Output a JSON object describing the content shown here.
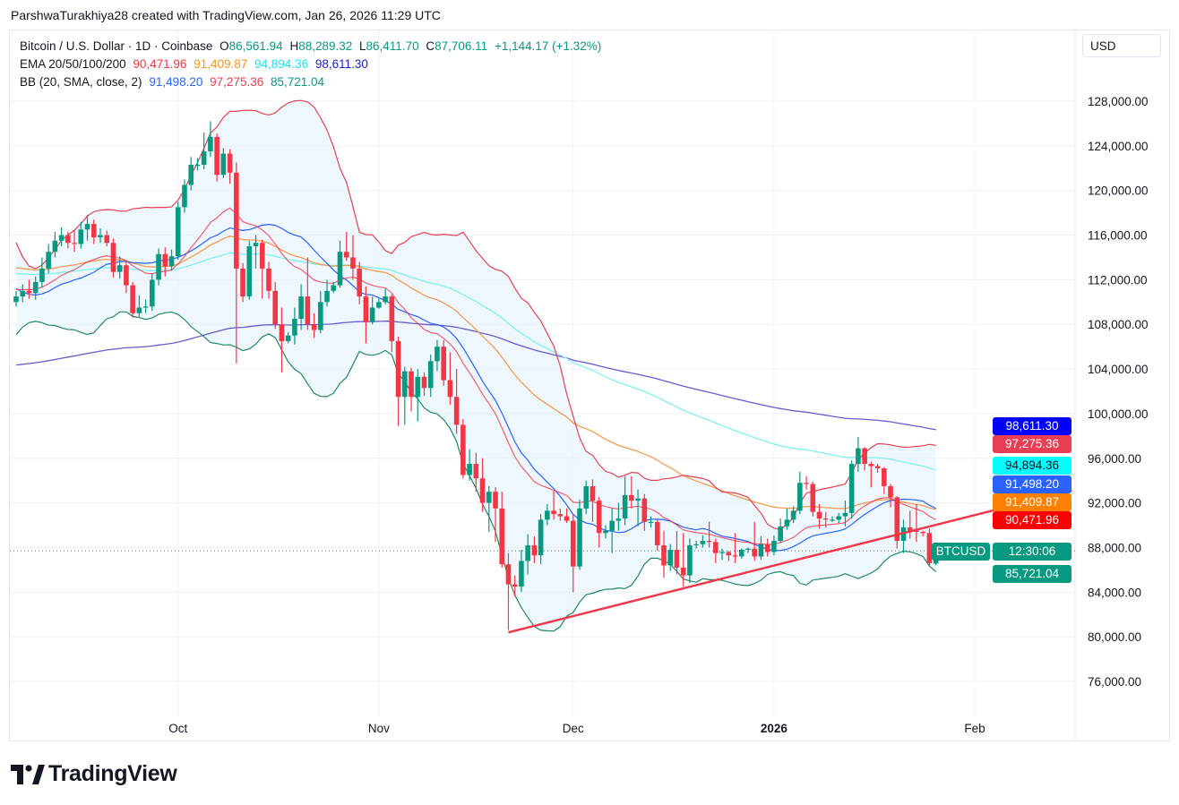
{
  "credit": "ParshwaTurakhiya28 created with TradingView.com, Jan 26, 2026 11:29 UTC",
  "legend": {
    "symbol": "Bitcoin / U.S. Dollar · 1D · Coinbase",
    "o_label": "O",
    "o": "86,561.94",
    "h_label": "H",
    "h": "88,289.32",
    "l_label": "L",
    "l": "86,411.70",
    "c_label": "C",
    "c": "87,706.11",
    "change": "+1,144.17 (+1.32%)",
    "ema_label": "EMA 20/50/100/200",
    "ema20": "90,471.96",
    "ema50": "91,409.87",
    "ema100": "94,894.36",
    "ema200": "98,611.30",
    "bb_label": "BB (20, SMA, close, 2)",
    "bb_basis": "91,498.20",
    "bb_upper": "97,275.36",
    "bb_lower": "85,721.04"
  },
  "currency": "USD",
  "price_tags": [
    {
      "text": "98,611.30",
      "bg": "#0000ff",
      "fg": "#ffffff"
    },
    {
      "text": "97,275.36",
      "bg": "#ea3c53",
      "fg": "#ffffff"
    },
    {
      "text": "94,894.36",
      "bg": "#00ffff",
      "fg": "#131722"
    },
    {
      "text": "91,498.20",
      "bg": "#2962ff",
      "fg": "#ffffff"
    },
    {
      "text": "91,409.87",
      "bg": "#ff8000",
      "fg": "#ffffff"
    },
    {
      "text": "90,471.96",
      "bg": "#ff0000",
      "fg": "#ffffff"
    },
    {
      "text": "12:30:06",
      "bg": "#089981",
      "fg": "#ffffff"
    },
    {
      "text": "85,721.04",
      "bg": "#089981",
      "fg": "#ffffff"
    }
  ],
  "symbol_tag": "BTCUSD",
  "brand": "TradingView",
  "colors": {
    "up": "#089981",
    "down": "#f23645",
    "ema20": "#f23645",
    "ema50": "#f59b4c",
    "ema100": "#7ff0f0",
    "ema200": "#6a5acd",
    "bb_basis": "#2962ff",
    "bb_upper": "#e5404f",
    "bb_lower": "#1e8a60",
    "bb_fill": "#e3f2fd",
    "trendline": "#f23645"
  },
  "chart_data": {
    "type": "candlestick",
    "interval": "1D",
    "y_ticks": [
      128000,
      124000,
      120000,
      116000,
      112000,
      108000,
      104000,
      100000,
      96000,
      92000,
      88000,
      84000,
      80000,
      76000
    ],
    "y_tick_labels": [
      "128,000.00",
      "124,000.00",
      "120,000.00",
      "116,000.00",
      "112,000.00",
      "108,000.00",
      "104,000.00",
      "100,000.00",
      "96,000.00",
      "92,000.00",
      "88,000.00",
      "84,000.00",
      "80,000.00",
      "76,000.00"
    ],
    "ylim": [
      73000,
      131000
    ],
    "x_ticks": [
      {
        "label": "Oct",
        "date": "2025-10-01"
      },
      {
        "label": "Nov",
        "date": "2025-11-01"
      },
      {
        "label": "Dec",
        "date": "2025-12-01"
      },
      {
        "label": "2026",
        "date": "2026-01-01",
        "bold": true
      },
      {
        "label": "Feb",
        "date": "2026-02-01"
      }
    ],
    "grid": true,
    "indicators": [
      "EMA 20",
      "EMA 50",
      "EMA 100",
      "EMA 200",
      "BB (20, SMA, close, 2)"
    ],
    "last_price": 87706.11,
    "trendline": [
      {
        "date": "2025-11-21",
        "price": 80400
      },
      {
        "date": "2026-02-16",
        "price": 93100
      }
    ],
    "candles": [
      [
        "2025-09-06",
        110000,
        111000,
        109600,
        110500
      ],
      [
        "2025-09-07",
        110500,
        111600,
        110000,
        111000
      ],
      [
        "2025-09-08",
        111000,
        112000,
        110300,
        110800
      ],
      [
        "2025-09-09",
        110800,
        112300,
        110200,
        111800
      ],
      [
        "2025-09-10",
        111800,
        114000,
        111300,
        113000
      ],
      [
        "2025-09-11",
        113000,
        115200,
        112600,
        114500
      ],
      [
        "2025-09-12",
        114500,
        116300,
        114000,
        115500
      ],
      [
        "2025-09-13",
        115500,
        116700,
        115000,
        116000
      ],
      [
        "2025-09-14",
        116000,
        116300,
        114800,
        115300
      ],
      [
        "2025-09-15",
        115300,
        116400,
        114500,
        115200
      ],
      [
        "2025-09-16",
        115200,
        117200,
        114800,
        116500
      ],
      [
        "2025-09-17",
        116500,
        117800,
        115500,
        117000
      ],
      [
        "2025-09-18",
        117000,
        117400,
        115200,
        115800
      ],
      [
        "2025-09-19",
        115800,
        116600,
        115300,
        116000
      ],
      [
        "2025-09-20",
        116000,
        116400,
        115000,
        115300
      ],
      [
        "2025-09-21",
        115300,
        115700,
        112200,
        112700
      ],
      [
        "2025-09-22",
        112700,
        114100,
        112100,
        113300
      ],
      [
        "2025-09-23",
        113300,
        113600,
        110800,
        111500
      ],
      [
        "2025-09-24",
        111500,
        111800,
        108600,
        109000
      ],
      [
        "2025-09-25",
        109000,
        110600,
        108700,
        109500
      ],
      [
        "2025-09-26",
        109500,
        110200,
        109000,
        109600
      ],
      [
        "2025-09-27",
        109600,
        112600,
        109200,
        112000
      ],
      [
        "2025-09-28",
        112000,
        114800,
        111500,
        114300
      ],
      [
        "2025-09-29",
        114300,
        114900,
        112300,
        113200
      ],
      [
        "2025-09-30",
        113200,
        114700,
        112800,
        114100
      ],
      [
        "2025-10-01",
        114100,
        119000,
        113800,
        118500
      ],
      [
        "2025-10-02",
        118500,
        121000,
        118000,
        120500
      ],
      [
        "2025-10-03",
        120500,
        123000,
        120000,
        122300
      ],
      [
        "2025-10-04",
        122300,
        122900,
        121800,
        122300
      ],
      [
        "2025-10-05",
        122300,
        125200,
        121900,
        123500
      ],
      [
        "2025-10-06",
        123500,
        126200,
        123000,
        124800
      ],
      [
        "2025-10-07",
        124800,
        125100,
        120800,
        121400
      ],
      [
        "2025-10-08",
        121400,
        123800,
        121100,
        123300
      ],
      [
        "2025-10-09",
        123300,
        123700,
        120600,
        121600
      ],
      [
        "2025-10-10",
        121600,
        122500,
        104500,
        113000
      ],
      [
        "2025-10-11",
        113000,
        113500,
        110000,
        110500
      ],
      [
        "2025-10-12",
        110500,
        115500,
        110200,
        115000
      ],
      [
        "2025-10-13",
        115000,
        116000,
        113000,
        115300
      ],
      [
        "2025-10-14",
        115300,
        115600,
        110300,
        113000
      ],
      [
        "2025-10-15",
        113000,
        113600,
        110300,
        111000
      ],
      [
        "2025-10-16",
        111000,
        111800,
        107600,
        108000
      ],
      [
        "2025-10-17",
        108000,
        109500,
        103700,
        106500
      ],
      [
        "2025-10-18",
        106500,
        107300,
        106300,
        107000
      ],
      [
        "2025-10-19",
        107000,
        109500,
        106200,
        108500
      ],
      [
        "2025-10-20",
        108500,
        111600,
        107500,
        110500
      ],
      [
        "2025-10-21",
        110500,
        114000,
        107500,
        108000
      ],
      [
        "2025-10-22",
        108000,
        109000,
        106800,
        107500
      ],
      [
        "2025-10-23",
        107500,
        111000,
        107200,
        110000
      ],
      [
        "2025-10-24",
        110000,
        112000,
        109600,
        111000
      ],
      [
        "2025-10-25",
        111000,
        111800,
        110800,
        111500
      ],
      [
        "2025-10-26",
        111500,
        115500,
        111300,
        114500
      ],
      [
        "2025-10-27",
        114500,
        116300,
        113700,
        114000
      ],
      [
        "2025-10-28",
        114000,
        116000,
        112000,
        113000
      ],
      [
        "2025-10-29",
        113000,
        113600,
        109800,
        110500
      ],
      [
        "2025-10-30",
        110500,
        111400,
        106300,
        108200
      ],
      [
        "2025-10-31",
        108200,
        110500,
        108000,
        109500
      ],
      [
        "2025-11-01",
        109500,
        110300,
        109400,
        110000
      ],
      [
        "2025-11-02",
        110000,
        111200,
        109800,
        110500
      ],
      [
        "2025-11-03",
        110500,
        110700,
        105500,
        106500
      ],
      [
        "2025-11-04",
        106500,
        106900,
        98900,
        101500
      ],
      [
        "2025-11-05",
        101500,
        104200,
        99000,
        103800
      ],
      [
        "2025-11-06",
        103800,
        104100,
        100200,
        101500
      ],
      [
        "2025-11-07",
        101500,
        104000,
        99300,
        103300
      ],
      [
        "2025-11-08",
        103300,
        103700,
        101600,
        102300
      ],
      [
        "2025-11-09",
        102300,
        105300,
        101500,
        104700
      ],
      [
        "2025-11-10",
        104700,
        106600,
        103800,
        106000
      ],
      [
        "2025-11-11",
        106000,
        106600,
        102500,
        103000
      ],
      [
        "2025-11-12",
        103000,
        105500,
        100800,
        101500
      ],
      [
        "2025-11-13",
        101500,
        104000,
        98200,
        99000
      ],
      [
        "2025-11-14",
        99000,
        99500,
        94200,
        94500
      ],
      [
        "2025-11-15",
        94500,
        96800,
        94000,
        95500
      ],
      [
        "2025-11-16",
        95500,
        96500,
        93000,
        94200
      ],
      [
        "2025-11-17",
        94200,
        96000,
        91200,
        92000
      ],
      [
        "2025-11-18",
        92000,
        93500,
        89400,
        93000
      ],
      [
        "2025-11-19",
        93000,
        93400,
        88500,
        91500
      ],
      [
        "2025-11-20",
        91500,
        93000,
        86200,
        86500
      ],
      [
        "2025-11-21",
        86500,
        87500,
        80600,
        84700
      ],
      [
        "2025-11-22",
        84700,
        85500,
        83600,
        84500
      ],
      [
        "2025-11-23",
        84500,
        87800,
        84000,
        86800
      ],
      [
        "2025-11-24",
        86800,
        89200,
        85600,
        88200
      ],
      [
        "2025-11-25",
        88200,
        89000,
        86600,
        87300
      ],
      [
        "2025-11-26",
        87300,
        91000,
        86500,
        90500
      ],
      [
        "2025-11-27",
        90500,
        91900,
        90000,
        91300
      ],
      [
        "2025-11-28",
        91300,
        93100,
        90500,
        91000
      ],
      [
        "2025-11-29",
        91000,
        91500,
        90400,
        90800
      ],
      [
        "2025-11-30",
        90800,
        91500,
        90200,
        90400
      ],
      [
        "2025-12-01",
        90400,
        91000,
        84000,
        86300
      ],
      [
        "2025-12-02",
        86300,
        92300,
        86000,
        91500
      ],
      [
        "2025-12-03",
        91500,
        94000,
        91000,
        93500
      ],
      [
        "2025-12-04",
        93500,
        94100,
        90300,
        92200
      ],
      [
        "2025-12-05",
        92200,
        92500,
        88000,
        89300
      ],
      [
        "2025-12-06",
        89300,
        90000,
        88800,
        89500
      ],
      [
        "2025-12-07",
        89500,
        91500,
        87500,
        90400
      ],
      [
        "2025-12-08",
        90400,
        92000,
        89500,
        90600
      ],
      [
        "2025-12-09",
        90600,
        94400,
        90000,
        92700
      ],
      [
        "2025-12-10",
        92700,
        94400,
        91500,
        92200
      ],
      [
        "2025-12-11",
        92200,
        93200,
        89900,
        92400
      ],
      [
        "2025-12-12",
        92400,
        92800,
        89500,
        90300
      ],
      [
        "2025-12-13",
        90300,
        90800,
        89800,
        90300
      ],
      [
        "2025-12-14",
        90300,
        90600,
        87700,
        88200
      ],
      [
        "2025-12-15",
        88200,
        89500,
        85300,
        86400
      ],
      [
        "2025-12-16",
        86400,
        88300,
        85900,
        87800
      ],
      [
        "2025-12-17",
        87800,
        89500,
        85600,
        86200
      ],
      [
        "2025-12-18",
        86200,
        89300,
        84500,
        85500
      ],
      [
        "2025-12-19",
        85500,
        88800,
        84800,
        88200
      ],
      [
        "2025-12-20",
        88200,
        88600,
        87900,
        88300
      ],
      [
        "2025-12-21",
        88300,
        89100,
        88000,
        88600
      ],
      [
        "2025-12-22",
        88600,
        90300,
        88000,
        88500
      ],
      [
        "2025-12-23",
        88500,
        88800,
        86600,
        87500
      ],
      [
        "2025-12-24",
        87500,
        87900,
        86900,
        87600
      ],
      [
        "2025-12-25",
        87600,
        87700,
        86800,
        87300
      ],
      [
        "2025-12-26",
        87300,
        89300,
        86600,
        87200
      ],
      [
        "2025-12-27",
        87200,
        87900,
        87000,
        87800
      ],
      [
        "2025-12-28",
        87800,
        88000,
        87500,
        87900
      ],
      [
        "2025-12-29",
        87900,
        90300,
        86800,
        87200
      ],
      [
        "2025-12-30",
        87200,
        89000,
        86900,
        88300
      ],
      [
        "2025-12-31",
        88300,
        88800,
        87200,
        87600
      ],
      [
        "2026-01-01",
        87600,
        89100,
        87300,
        88600
      ],
      [
        "2026-01-02",
        88600,
        90600,
        88400,
        89900
      ],
      [
        "2026-01-03",
        89900,
        91500,
        89600,
        90500
      ],
      [
        "2026-01-04",
        90500,
        91700,
        90200,
        91300
      ],
      [
        "2026-01-05",
        91300,
        94800,
        91000,
        93800
      ],
      [
        "2026-01-06",
        93800,
        94400,
        93200,
        93700
      ],
      [
        "2026-01-07",
        93700,
        93900,
        90800,
        91200
      ],
      [
        "2026-01-08",
        91200,
        91900,
        89700,
        90600
      ],
      [
        "2026-01-09",
        90600,
        91200,
        89800,
        90500
      ],
      [
        "2026-01-10",
        90500,
        90800,
        90300,
        90500
      ],
      [
        "2026-01-11",
        90500,
        91100,
        90200,
        90800
      ],
      [
        "2026-01-12",
        90800,
        92200,
        89900,
        91100
      ],
      [
        "2026-01-13",
        91100,
        95800,
        90600,
        95500
      ],
      [
        "2026-01-14",
        95500,
        97900,
        94800,
        96900
      ],
      [
        "2026-01-15",
        96900,
        97000,
        94900,
        95500
      ],
      [
        "2026-01-16",
        95500,
        95700,
        93400,
        95300
      ],
      [
        "2026-01-17",
        95300,
        95500,
        94700,
        95100
      ],
      [
        "2026-01-18",
        95100,
        95200,
        92800,
        93500
      ],
      [
        "2026-01-19",
        93500,
        93700,
        91600,
        92500
      ],
      [
        "2026-01-20",
        92500,
        92600,
        87900,
        88600
      ],
      [
        "2026-01-21",
        88600,
        90500,
        87500,
        89800
      ],
      [
        "2026-01-22",
        89800,
        91300,
        88800,
        89500
      ],
      [
        "2026-01-23",
        89500,
        91900,
        88500,
        89400
      ],
      [
        "2026-01-24",
        89400,
        89500,
        89000,
        89300
      ],
      [
        "2026-01-25",
        89300,
        89700,
        86300,
        86600
      ],
      [
        "2026-01-26",
        86561.94,
        88289.32,
        86411.7,
        87706.11
      ]
    ]
  }
}
